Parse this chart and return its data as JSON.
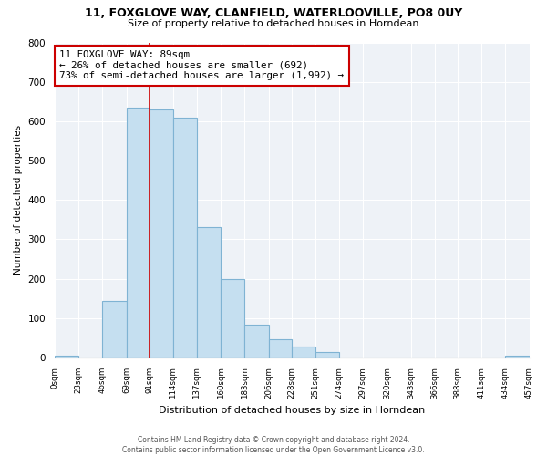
{
  "title": "11, FOXGLOVE WAY, CLANFIELD, WATERLOOVILLE, PO8 0UY",
  "subtitle": "Size of property relative to detached houses in Horndean",
  "xlabel": "Distribution of detached houses by size in Horndean",
  "ylabel": "Number of detached properties",
  "bar_edges": [
    0,
    23,
    46,
    69,
    91,
    114,
    137,
    160,
    183,
    206,
    228,
    251,
    274,
    297,
    320,
    343,
    366,
    388,
    411,
    434,
    457
  ],
  "bar_heights": [
    5,
    0,
    143,
    635,
    630,
    608,
    332,
    200,
    83,
    46,
    27,
    13,
    0,
    0,
    0,
    0,
    0,
    0,
    0,
    5
  ],
  "bar_color": "#c5dff0",
  "bar_edge_color": "#7fb3d3",
  "property_line_x": 91,
  "property_line_color": "#cc0000",
  "annotation_line1": "11 FOXGLOVE WAY: 89sqm",
  "annotation_line2": "← 26% of detached houses are smaller (692)",
  "annotation_line3": "73% of semi-detached houses are larger (1,992) →",
  "annotation_box_color": "white",
  "annotation_box_edge": "#cc0000",
  "ylim": [
    0,
    800
  ],
  "yticks": [
    0,
    100,
    200,
    300,
    400,
    500,
    600,
    700,
    800
  ],
  "xtick_labels": [
    "0sqm",
    "23sqm",
    "46sqm",
    "69sqm",
    "91sqm",
    "114sqm",
    "137sqm",
    "160sqm",
    "183sqm",
    "206sqm",
    "228sqm",
    "251sqm",
    "274sqm",
    "297sqm",
    "320sqm",
    "343sqm",
    "366sqm",
    "388sqm",
    "411sqm",
    "434sqm",
    "457sqm"
  ],
  "footer_line1": "Contains HM Land Registry data © Crown copyright and database right 2024.",
  "footer_line2": "Contains public sector information licensed under the Open Government Licence v3.0.",
  "background_color": "#eef2f7"
}
